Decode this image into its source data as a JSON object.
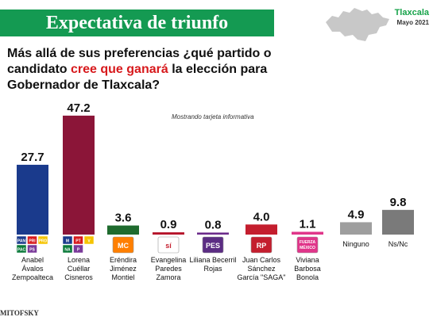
{
  "header": {
    "title": "Expectativa de triunfo",
    "region": "Tlaxcala",
    "date": "Mayo 2021"
  },
  "question": {
    "part1": "Más allá de sus preferencias ¿qué partido o candidato ",
    "highlight": "cree que ganará",
    "part2": " la elección para Gobernador de Tlaxcala?"
  },
  "note": "Mostrando tarjeta informativa",
  "footer": {
    "brand": "MITOFSKY"
  },
  "colors": {
    "banner": "#149a52",
    "highlight": "#d7191c"
  },
  "chart_data": {
    "type": "bar",
    "categories": [
      "Anabel Ávalos Zempoalteca",
      "Lorena Cuéllar Cisneros",
      "Eréndira Jiménez Montiel",
      "Evangelina Paredes Zamora",
      "Liliana Becerril Rojas",
      "Juan Carlos Sánchez García \"SAGA\"",
      "Viviana Barbosa Bonola",
      "Ninguno",
      "Ns/Nc"
    ],
    "category_lines": [
      [
        "Anabel",
        "Ávalos",
        "Zempoalteca"
      ],
      [
        "Lorena",
        "Cuéllar",
        "Cisneros"
      ],
      [
        "Eréndira",
        "Jiménez",
        "Montiel"
      ],
      [
        "Evangelina",
        "Paredes",
        "Zamora"
      ],
      [
        "Liliana Becerril",
        "Rojas"
      ],
      [
        "Juan Carlos",
        "Sánchez",
        "García \"SAGA\""
      ],
      [
        "Viviana",
        "Barbosa",
        "Bonola"
      ],
      [
        "Ninguno"
      ],
      [
        "Ns/Nc"
      ]
    ],
    "values": [
      27.7,
      47.2,
      3.6,
      0.9,
      0.8,
      4.0,
      1.1,
      4.9,
      9.8
    ],
    "value_labels": [
      "27.7",
      "47.2",
      "3.6",
      "0.9",
      "0.8",
      "4.0",
      "1.1",
      "4.9",
      "9.8"
    ],
    "colors": [
      "#1a3a8c",
      "#8b1538",
      "#1f6b2e",
      "#b5132a",
      "#6b2a8a",
      "#c41e2e",
      "#e0358a",
      "#9e9e9e",
      "#7a7a7a"
    ],
    "logos": [
      {
        "type": "coalition",
        "labels": [
          "PAN",
          "PRI",
          "PRD",
          "PAC",
          "PS"
        ]
      },
      {
        "type": "coalition",
        "labels": [
          "M",
          "PT",
          "V",
          "NA",
          "P"
        ]
      },
      {
        "type": "single",
        "label": "MC",
        "bg": "#ff7f00",
        "fg": "#ffffff"
      },
      {
        "type": "single",
        "label": "sí",
        "bg": "#ffffff",
        "fg": "#c41e2e"
      },
      {
        "type": "single",
        "label": "PES",
        "bg": "#5b2c83",
        "fg": "#ffffff"
      },
      {
        "type": "single",
        "label": "RP",
        "bg": "#c41e2e",
        "fg": "#ffffff"
      },
      {
        "type": "single",
        "label": "FUERZA MÉXICO",
        "bg": "#e0358a",
        "fg": "#ffffff"
      },
      {
        "type": "none"
      },
      {
        "type": "none"
      }
    ],
    "ylim": [
      0,
      50
    ],
    "title": "",
    "xlabel": "",
    "ylabel": ""
  }
}
